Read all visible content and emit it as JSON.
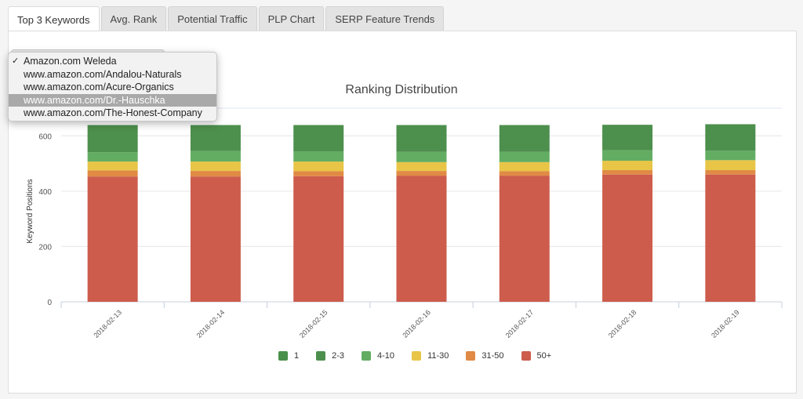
{
  "tabs": [
    {
      "label": "Top 3 Keywords",
      "active": true
    },
    {
      "label": "Avg. Rank",
      "active": false
    },
    {
      "label": "Potential Traffic",
      "active": false
    },
    {
      "label": "PLP Chart",
      "active": false
    },
    {
      "label": "SERP Feature Trends",
      "active": false
    }
  ],
  "dropdown": {
    "options": [
      {
        "label": "Amazon.com Weleda",
        "checked": true,
        "highlighted": false
      },
      {
        "label": "www.amazon.com/Andalou-Naturals",
        "checked": false,
        "highlighted": false
      },
      {
        "label": "www.amazon.com/Acure-Organics",
        "checked": false,
        "highlighted": false
      },
      {
        "label": "www.amazon.com/Dr.-Hauschka",
        "checked": false,
        "highlighted": true
      },
      {
        "label": "www.amazon.com/The-Honest-Company",
        "checked": false,
        "highlighted": false
      }
    ],
    "check_glyph": "✓"
  },
  "chart_data": {
    "type": "bar",
    "stacked": true,
    "title": "Ranking Distribution",
    "ylabel": "Keyword Positions",
    "xlabel": "",
    "ylim": [
      0,
      700
    ],
    "yticks": [
      0,
      200,
      400,
      600
    ],
    "grid": true,
    "legend_position": "bottom",
    "categories": [
      "2018-02-13",
      "2018-02-14",
      "2018-02-15",
      "2018-02-16",
      "2018-02-17",
      "2018-02-18",
      "2018-02-19"
    ],
    "series": [
      {
        "name": "50+",
        "color": "#cd5c4c",
        "values": [
          453,
          453,
          454,
          456,
          456,
          460,
          460
        ]
      },
      {
        "name": "31-50",
        "color": "#e08a45",
        "values": [
          22,
          20,
          18,
          17,
          16,
          16,
          16
        ]
      },
      {
        "name": "11-30",
        "color": "#e8c547",
        "values": [
          32,
          34,
          35,
          32,
          33,
          34,
          36
        ]
      },
      {
        "name": "4-10",
        "color": "#63ad63",
        "values": [
          34,
          38,
          37,
          37,
          37,
          38,
          34
        ]
      },
      {
        "name": "2-3",
        "color": "#4d8f4d",
        "values": [
          98,
          94,
          95,
          97,
          97,
          92,
          96
        ]
      },
      {
        "name": "1",
        "color": "#4a8f4a",
        "values": [
          0,
          0,
          0,
          0,
          0,
          0,
          0
        ]
      }
    ],
    "legend_order": [
      "1",
      "2-3",
      "4-10",
      "11-30",
      "31-50",
      "50+"
    ]
  }
}
